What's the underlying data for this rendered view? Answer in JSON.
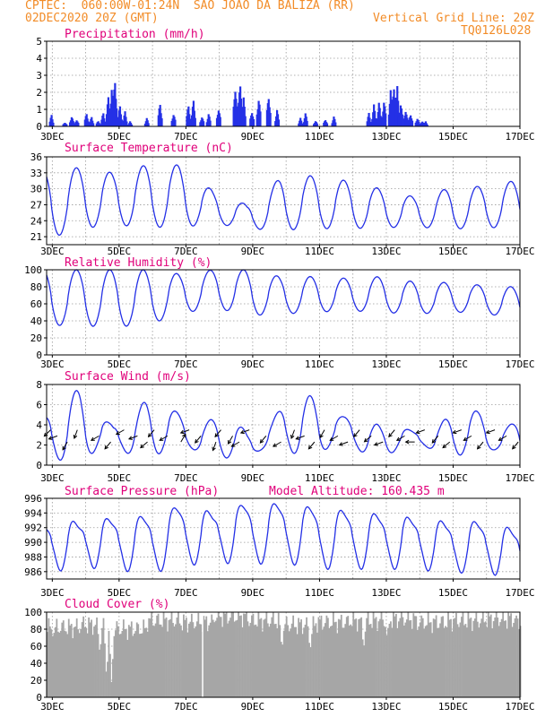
{
  "header": {
    "line1_left": "CPTEC:  060:00W-01:24N  SAO JOAO DA BALIZA (RR)",
    "line2_left": "02DEC2020 20Z (GMT)",
    "line2_right": "Vertical Grid Line: 20Z",
    "line3_right": "TQ0126L028"
  },
  "colors": {
    "header": "#f28c28",
    "title": "#e0007a",
    "line": "#2430e6",
    "bar": "#2430e6",
    "cloud": "#a6a6a6",
    "grid": "#9a9a9a"
  },
  "chart_data": [
    {
      "type": "bar",
      "title": "Precipitation (mm/h)",
      "x_ticks": [
        "3DEC",
        "5DEC",
        "7DEC",
        "9DEC",
        "11DEC",
        "13DEC",
        "15DEC",
        "17DEC"
      ],
      "xlim_days": [
        2.83,
        17.0
      ],
      "ylim": [
        0,
        5
      ],
      "y_ticks": [
        0,
        1,
        2,
        3,
        4,
        5
      ],
      "grid": true,
      "events": [
        {
          "day": 2.95,
          "value": 0.7
        },
        {
          "day": 3.35,
          "value": 0.3
        },
        {
          "day": 3.55,
          "value": 0.7
        },
        {
          "day": 3.7,
          "value": 0.5
        },
        {
          "day": 4.0,
          "value": 0.9
        },
        {
          "day": 4.15,
          "value": 0.6
        },
        {
          "day": 4.35,
          "value": 0.4
        },
        {
          "day": 4.5,
          "value": 0.9
        },
        {
          "day": 4.65,
          "value": 1.8
        },
        {
          "day": 4.75,
          "value": 2.6
        },
        {
          "day": 4.85,
          "value": 3.2
        },
        {
          "day": 5.0,
          "value": 1.3
        },
        {
          "day": 5.15,
          "value": 0.9
        },
        {
          "day": 5.3,
          "value": 0.3
        },
        {
          "day": 5.8,
          "value": 0.5
        },
        {
          "day": 6.2,
          "value": 1.5
        },
        {
          "day": 6.6,
          "value": 0.9
        },
        {
          "day": 7.05,
          "value": 1.4
        },
        {
          "day": 7.2,
          "value": 1.6
        },
        {
          "day": 7.45,
          "value": 0.7
        },
        {
          "day": 7.65,
          "value": 0.8
        },
        {
          "day": 7.95,
          "value": 1.3
        },
        {
          "day": 8.45,
          "value": 2.9
        },
        {
          "day": 8.6,
          "value": 3.2
        },
        {
          "day": 8.7,
          "value": 1.7
        },
        {
          "day": 8.95,
          "value": 1.1
        },
        {
          "day": 9.15,
          "value": 2.0
        },
        {
          "day": 9.45,
          "value": 2.2
        },
        {
          "day": 9.7,
          "value": 1.0
        },
        {
          "day": 10.4,
          "value": 0.5
        },
        {
          "day": 10.55,
          "value": 0.8
        },
        {
          "day": 10.85,
          "value": 0.4
        },
        {
          "day": 11.15,
          "value": 0.5
        },
        {
          "day": 11.4,
          "value": 0.6
        },
        {
          "day": 12.45,
          "value": 0.8
        },
        {
          "day": 12.6,
          "value": 1.3
        },
        {
          "day": 12.75,
          "value": 1.5
        },
        {
          "day": 12.9,
          "value": 1.7
        },
        {
          "day": 13.1,
          "value": 2.2
        },
        {
          "day": 13.2,
          "value": 3.1
        },
        {
          "day": 13.3,
          "value": 2.4
        },
        {
          "day": 13.4,
          "value": 1.6
        },
        {
          "day": 13.55,
          "value": 1.2
        },
        {
          "day": 13.7,
          "value": 0.9
        },
        {
          "day": 13.9,
          "value": 0.6
        },
        {
          "day": 14.05,
          "value": 0.4
        },
        {
          "day": 14.15,
          "value": 0.3
        }
      ]
    },
    {
      "type": "line",
      "title": "Surface Temperature (nC)",
      "x_ticks": [
        "3DEC",
        "5DEC",
        "7DEC",
        "9DEC",
        "11DEC",
        "13DEC",
        "15DEC",
        "17DEC"
      ],
      "xlim_days": [
        2.83,
        17.0
      ],
      "ylim": [
        19.5,
        36
      ],
      "y_ticks": [
        21,
        24,
        27,
        30,
        33,
        36
      ],
      "grid": true,
      "daily_min": [
        20.5,
        22.5,
        23.2,
        22.8,
        22.7,
        23.5,
        22.5,
        22.2,
        22.5,
        22.5,
        22.7,
        22.8,
        22.5,
        22.5,
        23.0
      ],
      "daily_max": [
        33.5,
        34.0,
        33.0,
        34.5,
        34.5,
        29.5,
        27.0,
        32.0,
        32.5,
        31.5,
        30.0,
        28.5,
        30.0,
        30.5,
        31.5
      ]
    },
    {
      "type": "line",
      "title": "Relative Humidity (%)",
      "x_ticks": [
        "3DEC",
        "5DEC",
        "7DEC",
        "9DEC",
        "11DEC",
        "13DEC",
        "15DEC",
        "17DEC"
      ],
      "xlim_days": [
        2.83,
        17.0
      ],
      "ylim": [
        0,
        100
      ],
      "y_ticks": [
        0,
        20,
        40,
        60,
        80,
        100
      ],
      "grid": true,
      "daily_min": [
        35,
        34,
        33,
        35,
        48,
        56,
        46,
        48,
        50,
        52,
        50,
        48,
        50,
        50,
        42
      ],
      "daily_max": [
        100,
        100,
        100,
        100,
        95,
        100,
        100,
        92,
        92,
        90,
        92,
        86,
        85,
        82,
        80
      ]
    },
    {
      "type": "line",
      "title": "Surface Wind (m/s)",
      "x_ticks": [
        "3DEC",
        "5DEC",
        "7DEC",
        "9DEC",
        "11DEC",
        "13DEC",
        "15DEC",
        "17DEC"
      ],
      "xlim_days": [
        2.83,
        17.0
      ],
      "ylim": [
        0,
        8
      ],
      "y_ticks": [
        0,
        2,
        4,
        6,
        8
      ],
      "grid": true,
      "daily_min": [
        0.5,
        1.2,
        1.0,
        1.5,
        1.2,
        1.3,
        0.8,
        1.5,
        1.5,
        1.4,
        1.5,
        1.5,
        1.5,
        1.2,
        1.0
      ],
      "daily_max": [
        5.0,
        7.3,
        4.2,
        6.0,
        5.5,
        4.2,
        3.5,
        5.5,
        6.7,
        5.0,
        3.5,
        3.8,
        4.3,
        5.5,
        4.0
      ],
      "vector_days": [
        2.95,
        3.15,
        3.45,
        3.75,
        4.4,
        4.75,
        5.15,
        5.55,
        5.85,
        6.05,
        6.45,
        6.85,
        7.1,
        7.45,
        7.9,
        8.05,
        8.4,
        8.6,
        8.9,
        9.4,
        9.85,
        10.25,
        10.55,
        10.85,
        11.15,
        11.55,
        11.85,
        12.2,
        12.55,
        12.9,
        13.25,
        13.55,
        13.85,
        14.15,
        14.55,
        14.9,
        15.25,
        15.55,
        15.9,
        16.25,
        16.6,
        16.95
      ],
      "vector_angles_deg": [
        225,
        200,
        240,
        250,
        210,
        230,
        210,
        200,
        220,
        230,
        210,
        60,
        200,
        230,
        250,
        230,
        240,
        210,
        200,
        230,
        210,
        250,
        200,
        230,
        240,
        210,
        200,
        230,
        220,
        200,
        230,
        210,
        180,
        200,
        230,
        220,
        200,
        210,
        230,
        200,
        210,
        230
      ]
    },
    {
      "type": "line",
      "title": "Surface Pressure (hPa)",
      "subtitle": "Model Altitude: 160.435 m",
      "x_ticks": [
        "3DEC",
        "5DEC",
        "7DEC",
        "9DEC",
        "11DEC",
        "13DEC",
        "15DEC",
        "17DEC"
      ],
      "xlim_days": [
        2.83,
        17.0
      ],
      "ylim": [
        985,
        996
      ],
      "y_ticks": [
        986,
        988,
        990,
        992,
        994,
        996
      ],
      "grid": true,
      "daily_min": [
        986.5,
        987.2,
        987.0,
        986.3,
        987.3,
        988.0,
        987.5,
        988.0,
        987.0,
        987.0,
        987.0,
        987.0,
        986.5,
        986.5,
        985.8
      ],
      "daily_max": [
        993.0,
        993.0,
        993.5,
        993.8,
        995.2,
        994.3,
        995.5,
        995.5,
        995.0,
        994.5,
        994.0,
        993.5,
        993.0,
        993.0,
        992.0
      ]
    },
    {
      "type": "area",
      "title": "Cloud Cover (%)",
      "x_ticks": [
        "3DEC",
        "5DEC",
        "7DEC",
        "9DEC",
        "11DEC",
        "13DEC",
        "15DEC",
        "17DEC"
      ],
      "xlim_days": [
        2.83,
        17.0
      ],
      "ylim": [
        0,
        100
      ],
      "y_ticks": [
        0,
        20,
        40,
        60,
        80,
        100
      ],
      "grid": true,
      "daily_mean": [
        82,
        85,
        80,
        90,
        88,
        95,
        90,
        85,
        88,
        90,
        92,
        88,
        90,
        92,
        88
      ],
      "dips": [
        {
          "day": 3.0,
          "value": 72
        },
        {
          "day": 4.4,
          "value": 55
        },
        {
          "day": 4.6,
          "value": 28
        },
        {
          "day": 4.75,
          "value": 18
        },
        {
          "day": 9.85,
          "value": 60
        },
        {
          "day": 10.7,
          "value": 58
        },
        {
          "day": 12.3,
          "value": 60
        },
        {
          "day": 13.0,
          "value": 72
        }
      ]
    }
  ]
}
